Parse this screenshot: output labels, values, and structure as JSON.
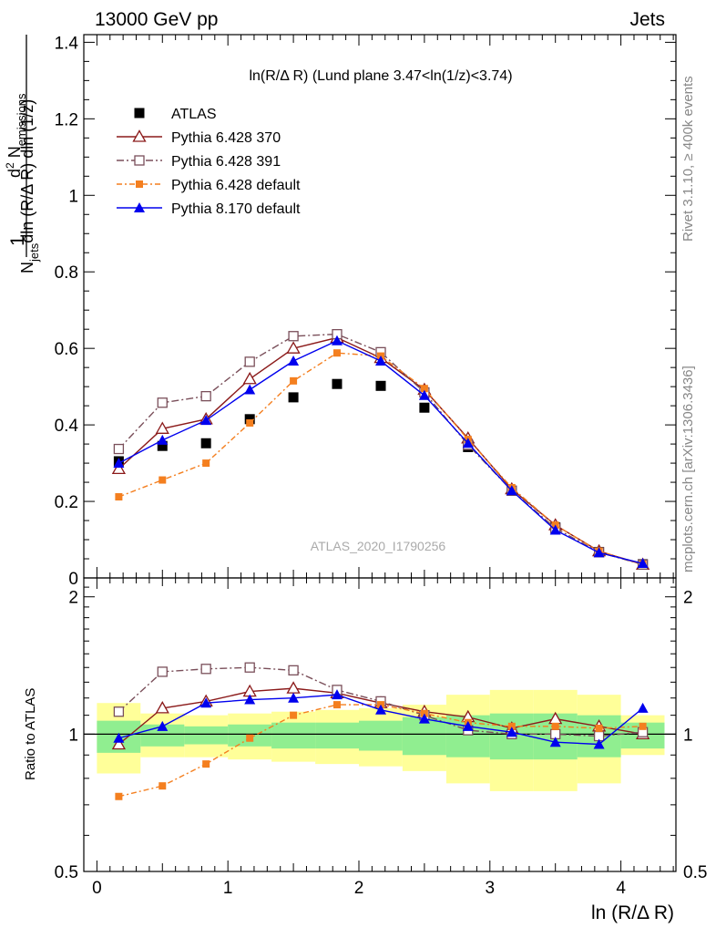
{
  "header": {
    "left": "13000 GeV pp",
    "right": "Jets"
  },
  "side_text": {
    "rivet": "Rivet 3.1.10, ≥ 400k events",
    "mcplots": "mcplots.cern.ch [arXiv:1306.3436]"
  },
  "analysis_label": "ATLAS_2020_I1790256",
  "plot_title": "ln(R/Δ R) (Lund plane 3.47<ln(1/z)<3.74)",
  "ylabel_main": "1/N_jets dln (R/Δ R) dln (1/z) d² N_emissions",
  "ylabel_ratio": "Ratio to ATLAS",
  "xlabel": "ln (R/Δ R)",
  "colors": {
    "atlas": "#000000",
    "p370": "#8b1a1a",
    "p391": "#7a4f5a",
    "p6def": "#f47f1f",
    "p8def": "#0000ee",
    "band_inner": "#90ee90",
    "band_outer": "#ffff99"
  },
  "chart_data": [
    {
      "type": "scatter",
      "name": "main",
      "xlim": [
        -0.1,
        4.42
      ],
      "ylim": [
        0,
        1.42
      ],
      "yticks": [
        0,
        0.2,
        0.4,
        0.6,
        0.8,
        1,
        1.2,
        1.4
      ],
      "ytick_labels": [
        "0",
        "0.2",
        "0.4",
        "0.6",
        "0.8",
        "1",
        "1.2",
        "1.4"
      ],
      "x": [
        0.167,
        0.5,
        0.833,
        1.167,
        1.5,
        1.833,
        2.167,
        2.5,
        2.833,
        3.167,
        3.5,
        3.833,
        4.167
      ],
      "series": [
        {
          "name": "ATLAS",
          "values": [
            0.305,
            0.345,
            0.352,
            0.415,
            0.472,
            0.507,
            0.502,
            0.445,
            0.342,
            0.228,
            0.132,
            0.068,
            0.036
          ]
        },
        {
          "name": "Pythia 6.428 370",
          "values": [
            0.285,
            0.39,
            0.415,
            0.52,
            0.6,
            0.628,
            0.575,
            0.492,
            0.365,
            0.232,
            0.138,
            0.07,
            0.035
          ]
        },
        {
          "name": "Pythia 6.428 391",
          "values": [
            0.337,
            0.458,
            0.475,
            0.565,
            0.632,
            0.637,
            0.59,
            0.485,
            0.348,
            0.228,
            0.13,
            0.067,
            0.035
          ]
        },
        {
          "name": "Pythia 6.428 default",
          "values": [
            0.212,
            0.256,
            0.3,
            0.405,
            0.515,
            0.588,
            0.58,
            0.495,
            0.362,
            0.236,
            0.138,
            0.07,
            0.036
          ]
        },
        {
          "name": "Pythia 8.170 default",
          "values": [
            0.3,
            0.36,
            0.412,
            0.492,
            0.567,
            0.62,
            0.567,
            0.477,
            0.352,
            0.228,
            0.125,
            0.066,
            0.038
          ]
        }
      ]
    },
    {
      "type": "scatter",
      "name": "ratio",
      "xlim": [
        -0.1,
        4.42
      ],
      "ylim": [
        0.5,
        2.2
      ],
      "log_y": true,
      "yticks": [
        0.5,
        1,
        2
      ],
      "ytick_labels": [
        "0.5",
        "1",
        "2"
      ],
      "xticks": [
        0,
        1,
        2,
        3,
        4
      ],
      "xtick_labels": [
        "0",
        "1",
        "2",
        "3",
        "4"
      ],
      "x": [
        0.167,
        0.5,
        0.833,
        1.167,
        1.5,
        1.833,
        2.167,
        2.5,
        2.833,
        3.167,
        3.5,
        3.833,
        4.167
      ],
      "bin_edges": [
        0,
        0.333,
        0.667,
        1,
        1.333,
        1.667,
        2,
        2.333,
        2.667,
        3,
        3.333,
        3.667,
        4,
        4.333
      ],
      "band_inner": [
        [
          0.91,
          1.07
        ],
        [
          0.94,
          1.05
        ],
        [
          0.95,
          1.04
        ],
        [
          0.94,
          1.05
        ],
        [
          0.93,
          1.06
        ],
        [
          0.93,
          1.06
        ],
        [
          0.92,
          1.07
        ],
        [
          0.9,
          1.09
        ],
        [
          0.89,
          1.1
        ],
        [
          0.88,
          1.11
        ],
        [
          0.88,
          1.11
        ],
        [
          0.89,
          1.1
        ],
        [
          0.93,
          1.06
        ]
      ],
      "band_outer": [
        [
          0.82,
          1.17
        ],
        [
          0.89,
          1.11
        ],
        [
          0.89,
          1.1
        ],
        [
          0.88,
          1.11
        ],
        [
          0.87,
          1.12
        ],
        [
          0.86,
          1.13
        ],
        [
          0.85,
          1.14
        ],
        [
          0.83,
          1.16
        ],
        [
          0.78,
          1.22
        ],
        [
          0.75,
          1.25
        ],
        [
          0.75,
          1.25
        ],
        [
          0.78,
          1.22
        ],
        [
          0.9,
          1.1
        ]
      ],
      "series": [
        {
          "name": "Pythia 6.428 370",
          "values": [
            0.95,
            1.14,
            1.18,
            1.24,
            1.26,
            1.23,
            1.17,
            1.12,
            1.09,
            1.03,
            1.08,
            1.04,
            1.0
          ]
        },
        {
          "name": "Pythia 6.428 391",
          "values": [
            1.12,
            1.37,
            1.39,
            1.4,
            1.38,
            1.25,
            1.18,
            1.1,
            1.02,
            1.0,
            1.0,
            0.99,
            1.01
          ]
        },
        {
          "name": "Pythia 6.428 default",
          "values": [
            0.73,
            0.77,
            0.86,
            0.98,
            1.1,
            1.16,
            1.16,
            1.11,
            1.06,
            1.04,
            1.04,
            1.03,
            1.04
          ]
        },
        {
          "name": "Pythia 8.170 default",
          "values": [
            0.98,
            1.04,
            1.17,
            1.19,
            1.2,
            1.22,
            1.13,
            1.08,
            1.04,
            1.01,
            0.96,
            0.95,
            1.14
          ]
        }
      ]
    }
  ]
}
